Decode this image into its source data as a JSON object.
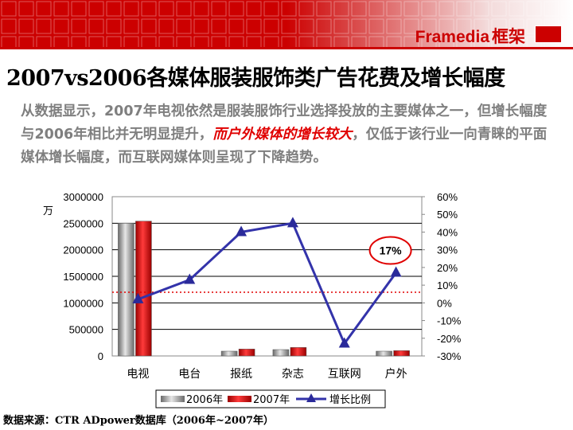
{
  "brand": {
    "name": "Framedia",
    "name_cn": "框架",
    "accent_color": "#cc0000"
  },
  "slide": {
    "title": "2007vs2006各媒体服装服饰类广告花费及增长幅度",
    "para_a": "从数据显示，2007年电视依然是服装服饰行业选择投放的主要媒体之一，但增长幅度与2006年相比并无明显提升，",
    "para_highlight": "而户外媒体的增长较大",
    "para_b": "，仅低于该行业一向青睐的平面媒体增长幅度，而互联网媒体则呈现了下降趋势。",
    "source": "数据来源：CTR ADpower数据库（2006年~2007年）"
  },
  "chart_data": {
    "type": "bar",
    "categories": [
      "电视",
      "电台",
      "报纸",
      "杂志",
      "互联网",
      "户外"
    ],
    "series": [
      {
        "name": "2006年",
        "type": "bar",
        "axis": "left",
        "color": "#999999",
        "values": [
          2500000,
          0,
          90000,
          120000,
          0,
          90000
        ]
      },
      {
        "name": "2007年",
        "type": "bar",
        "axis": "left",
        "color": "#e00010",
        "values": [
          2540000,
          0,
          130000,
          160000,
          0,
          100000
        ]
      },
      {
        "name": "增长比例",
        "type": "line",
        "axis": "right",
        "color": "#3333aa",
        "values": [
          0.02,
          0.13,
          0.4,
          0.45,
          -0.23,
          0.17
        ]
      }
    ],
    "y_left": {
      "min": 0,
      "max": 3000000,
      "step": 500000,
      "unit": "万",
      "ticks": [
        "0",
        "500000",
        "1000000",
        "1500000",
        "2000000",
        "2500000",
        "3000000"
      ]
    },
    "y_right": {
      "min": -0.3,
      "max": 0.6,
      "step": 0.1,
      "ticks": [
        "-30%",
        "-20%",
        "-10%",
        "0%",
        "10%",
        "20%",
        "30%",
        "40%",
        "50%",
        "60%"
      ]
    },
    "reference_line_value": 0.06,
    "callout": {
      "label": "17%",
      "category": "户外"
    },
    "grid": true,
    "legend_position": "bottom"
  }
}
